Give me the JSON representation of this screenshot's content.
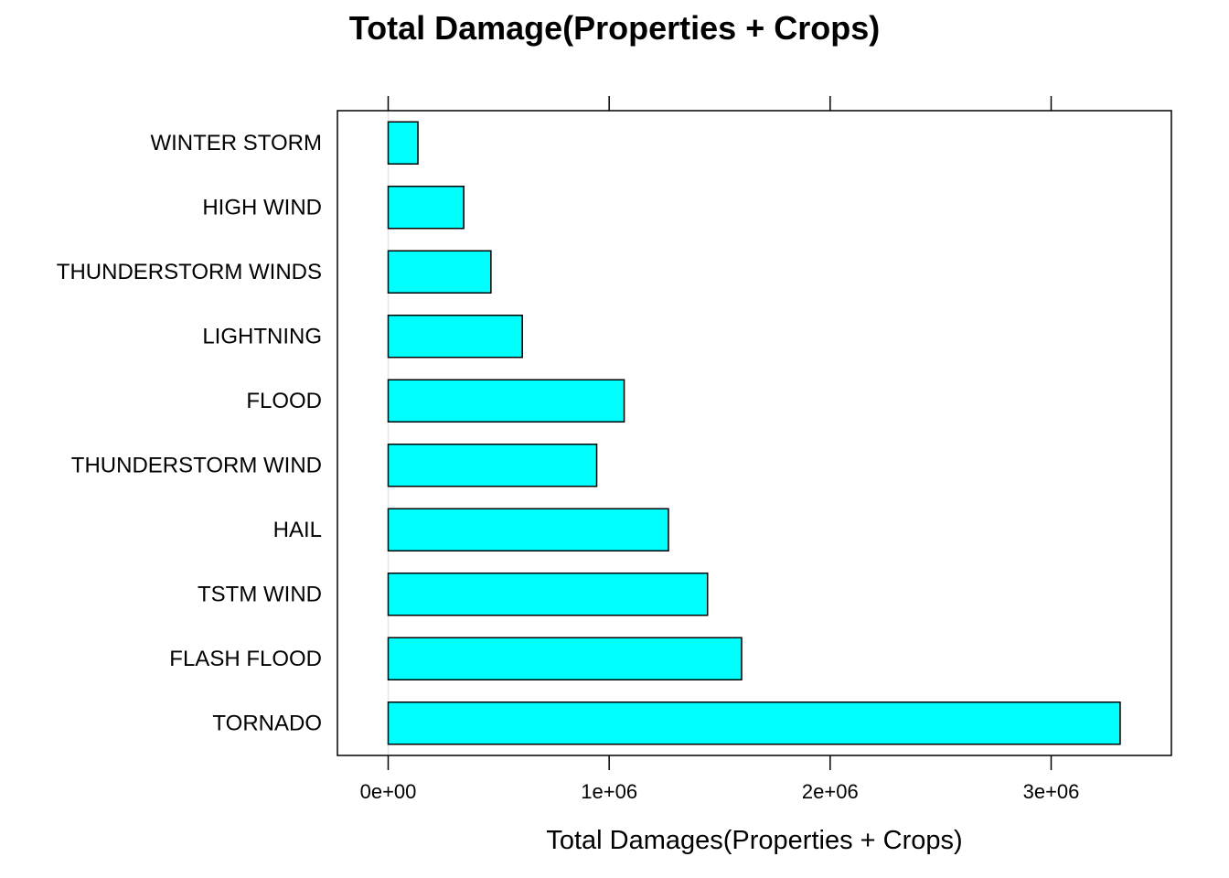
{
  "chart_data": {
    "type": "bar",
    "orientation": "horizontal",
    "title": "Total Damage(Properties + Crops)",
    "xlabel": "Total Damages(Properties + Crops)",
    "ylabel": "",
    "categories": [
      "TORNADO",
      "FLASH FLOOD",
      "TSTM WIND",
      "HAIL",
      "THUNDERSTORM WIND",
      "FLOOD",
      "LIGHTNING",
      "THUNDERSTORM WINDS",
      "HIGH WIND",
      "WINTER STORM"
    ],
    "values": [
      3312277,
      1599325,
      1445168,
      1268290,
      943636,
      1067976,
      606932,
      464978,
      342015,
      134700
    ],
    "xlim": [
      -230000,
      3540000
    ],
    "xticks": [
      0,
      1000000,
      2000000,
      3000000
    ],
    "xtick_labels": [
      "0e+00",
      "1e+06",
      "2e+06",
      "3e+06"
    ],
    "grid": false,
    "legend": "none",
    "bar_color": "#00FFFF",
    "bar_edge_color": "#000000",
    "reference_line_color": "#E6E6E6"
  }
}
